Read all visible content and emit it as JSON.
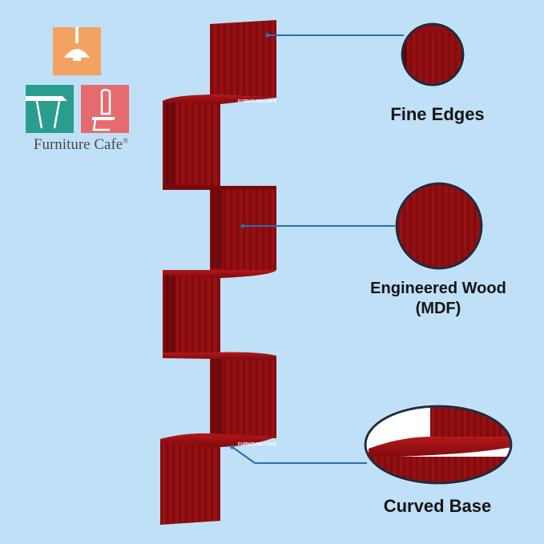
{
  "brand": {
    "name": "Furniture Cafe",
    "trademark": "®",
    "tile_colors": {
      "lamp": "#f4a261",
      "table": "#2a9d8f",
      "chair": "#e56b6f"
    }
  },
  "shelf": {
    "wood_color": "#8e0d10",
    "wood_dark": "#5a0608",
    "wood_light": "#b0191c",
    "tiers": 6,
    "brand_marks": [
      "FURNITURE CAFE",
      "FURNITURE CAFE"
    ]
  },
  "callouts": {
    "line_color": "#2a6fb0",
    "items": [
      {
        "id": "fine-edges",
        "label": "Fine Edges",
        "lines": [
          "Fine Edges"
        ]
      },
      {
        "id": "engineered-wood",
        "label": "Engineered Wood (MDF)",
        "lines": [
          "Engineered Wood",
          "(MDF)"
        ]
      },
      {
        "id": "curved-base",
        "label": "Curved Base",
        "lines": [
          "Curved Base"
        ]
      }
    ]
  }
}
